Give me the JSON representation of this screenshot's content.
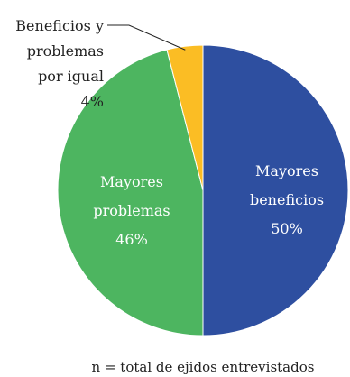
{
  "chart_data": {
    "type": "pie",
    "slices": [
      {
        "label": [
          "Mayores",
          "beneficios",
          "50%"
        ],
        "value": 50,
        "color": "#2e4fa0"
      },
      {
        "label": [
          "Mayores",
          "problemas",
          "46%"
        ],
        "value": 46,
        "color": "#4db560"
      },
      {
        "label": [
          "Beneficios y",
          "problemas",
          "por igual",
          "4%"
        ],
        "value": 4,
        "color": "#fbbd24"
      }
    ],
    "footnote": "n = total de ejidos entrevistados"
  }
}
